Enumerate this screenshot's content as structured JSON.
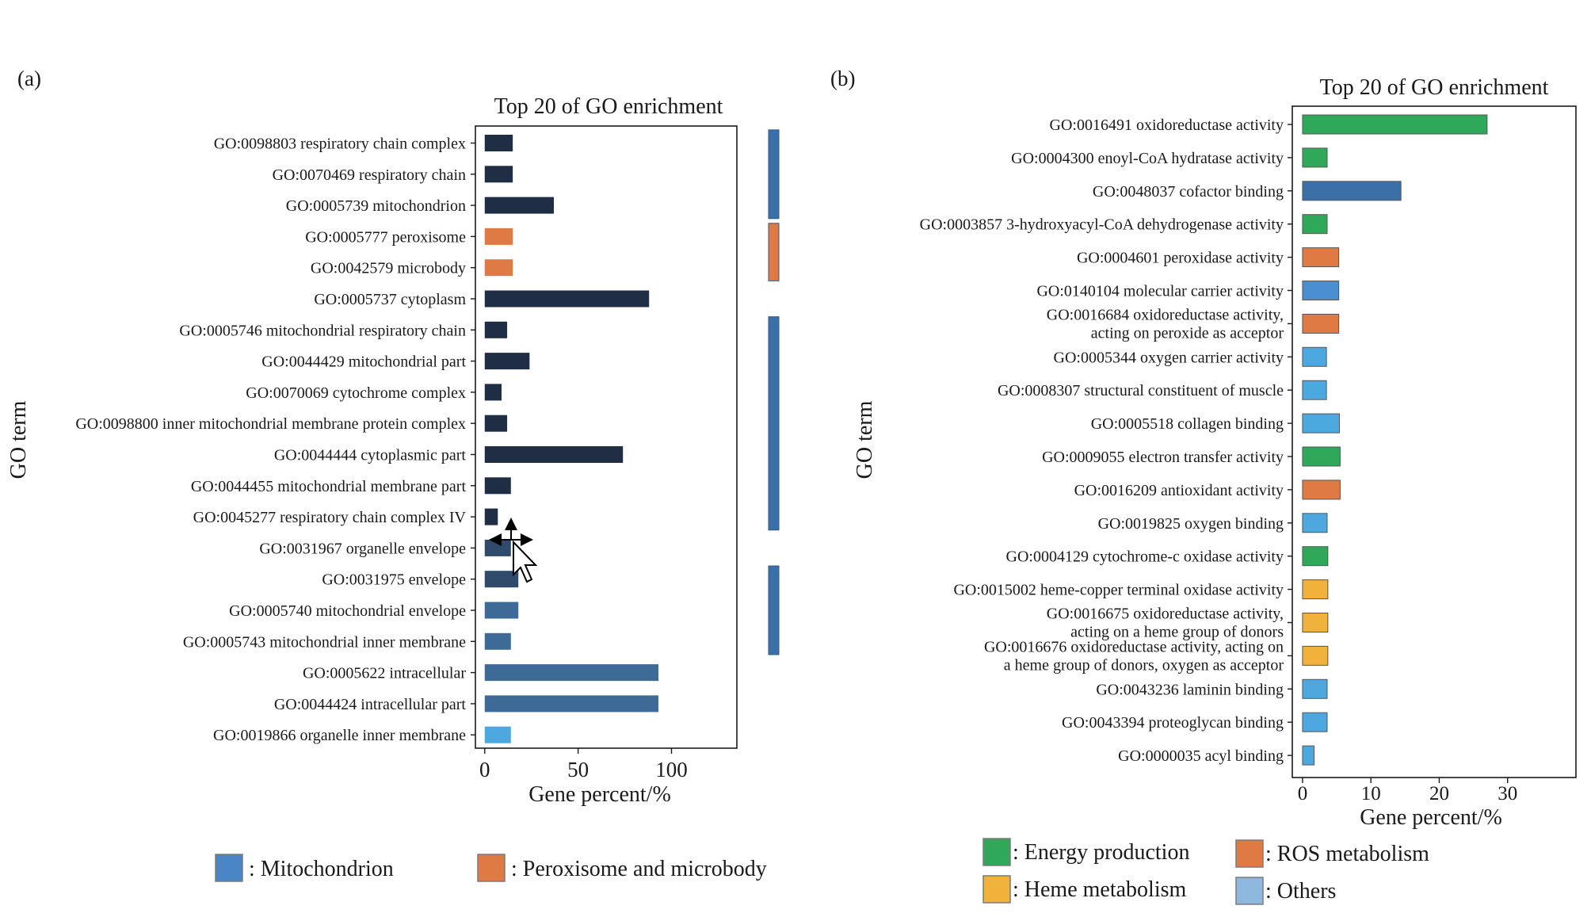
{
  "panels": {
    "a": {
      "label": "(a)"
    },
    "b": {
      "label": "(b)"
    }
  },
  "legend_a": [
    {
      "label": ": Mitochondrion",
      "color": "#4a86c5"
    },
    {
      "label": ": Peroxisome and microbody",
      "color": "#e07a45"
    }
  ],
  "legend_b": [
    {
      "label": ": Energy production",
      "color": "#2fa85a"
    },
    {
      "label": ": ROS metabolism",
      "color": "#e07a45"
    },
    {
      "label": ": Heme metabolism",
      "color": "#f0b23a"
    },
    {
      "label": ": Others",
      "color": "#8fb8de"
    }
  ],
  "chart_data": [
    {
      "type": "bar",
      "orientation": "horizontal",
      "title": "Top 20 of GO enrichment",
      "xlabel": "Gene percent/%",
      "ylabel": "GO term",
      "xlim": [
        -5,
        135
      ],
      "xticks": [
        0,
        50,
        100
      ],
      "grid": false,
      "categories": [
        "GO:0098803 respiratory chain complex",
        "GO:0070469 respiratory chain",
        "GO:0005739 mitochondrion",
        "GO:0005777 peroxisome",
        "GO:0042579 microbody",
        "GO:0005737 cytoplasm",
        "GO:0005746 mitochondrial respiratory chain",
        "GO:0044429 mitochondrial part",
        "GO:0070069 cytochrome complex",
        "GO:0098800 inner mitochondrial membrane protein complex",
        "GO:0044444 cytoplasmic part",
        "GO:0044455 mitochondrial membrane part",
        "GO:0045277 respiratory chain complex IV",
        "GO:0031967 organelle envelope",
        "GO:0031975 envelope",
        "GO:0005740 mitochondrial envelope",
        "GO:0005743 mitochondrial inner membrane",
        "GO:0005622 intracellular",
        "GO:0044424 intracellular part",
        "GO:0019866 organelle inner membrane"
      ],
      "values": [
        15,
        15,
        37,
        15,
        15,
        88,
        12,
        24,
        9,
        12,
        74,
        14,
        7,
        14,
        18,
        18,
        14,
        93,
        93,
        14
      ],
      "bar_colors": [
        "#1f2d45",
        "#1f2d45",
        "#1f2d45",
        "#e07a45",
        "#e07a45",
        "#1f2d45",
        "#1f2d45",
        "#1f2d45",
        "#1f2d45",
        "#1f2d45",
        "#1f2d45",
        "#1f2d45",
        "#1f2d45",
        "#2f4a6b",
        "#2f4a6b",
        "#3d6a96",
        "#3d6a96",
        "#3d6a96",
        "#3d6a96",
        "#4ea8e0"
      ],
      "group_markers": [
        {
          "color": "#3b6fa8",
          "from": 0,
          "to": 2
        },
        {
          "color": "#e07a45",
          "from": 3,
          "to": 4
        },
        {
          "color": "#3b6fa8",
          "from": 6,
          "to": 12
        },
        {
          "color": "#3b6fa8",
          "from": 14,
          "to": 16
        }
      ]
    },
    {
      "type": "bar",
      "orientation": "horizontal",
      "title": "Top 20 of GO enrichment",
      "xlabel": "Gene percent/%",
      "ylabel": "GO term",
      "xlim": [
        -1.5,
        40
      ],
      "xticks": [
        0,
        10,
        20,
        30
      ],
      "grid": false,
      "categories": [
        [
          "GO:0016491 oxidoreductase activity"
        ],
        [
          "GO:0004300 enoyl-CoA hydratase activity"
        ],
        [
          "GO:0048037 cofactor binding"
        ],
        [
          "GO:0003857 3-hydroxyacyl-CoA dehydrogenase activity"
        ],
        [
          "GO:0004601 peroxidase activity"
        ],
        [
          "GO:0140104 molecular carrier activity"
        ],
        [
          "GO:0016684 oxidoreductase activity,",
          "acting on peroxide as acceptor"
        ],
        [
          "GO:0005344 oxygen carrier activity"
        ],
        [
          "GO:0008307 structural constituent of muscle"
        ],
        [
          "GO:0005518 collagen binding"
        ],
        [
          "GO:0009055 electron transfer activity"
        ],
        [
          "GO:0016209 antioxidant activity"
        ],
        [
          "GO:0019825 oxygen binding"
        ],
        [
          "GO:0004129 cytochrome-c oxidase activity"
        ],
        [
          "GO:0015002 heme-copper terminal oxidase activity"
        ],
        [
          "GO:0016675 oxidoreductase activity,",
          "acting on a heme group of donors"
        ],
        [
          "GO:0016676 oxidoreductase activity, acting on",
          "a heme group of donors, oxygen as acceptor"
        ],
        [
          "GO:0043236 laminin binding"
        ],
        [
          "GO:0043394 proteoglycan binding"
        ],
        [
          "GO:0000035 acyl binding"
        ]
      ],
      "values": [
        27,
        3.6,
        14.4,
        3.6,
        5.3,
        5.3,
        5.3,
        3.5,
        3.5,
        5.4,
        5.5,
        5.5,
        3.6,
        3.7,
        3.7,
        3.7,
        3.7,
        3.6,
        3.6,
        1.7
      ],
      "bar_colors": [
        "#2fa85a",
        "#2fa85a",
        "#3b6fa8",
        "#2fa85a",
        "#e07a45",
        "#4a90d0",
        "#e07a45",
        "#4ea8e0",
        "#4ea8e0",
        "#4ea8e0",
        "#2fa85a",
        "#e07a45",
        "#4ea8e0",
        "#2fa85a",
        "#f0b23a",
        "#f0b23a",
        "#f0b23a",
        "#4ea8e0",
        "#4ea8e0",
        "#4ea8e0"
      ]
    }
  ]
}
